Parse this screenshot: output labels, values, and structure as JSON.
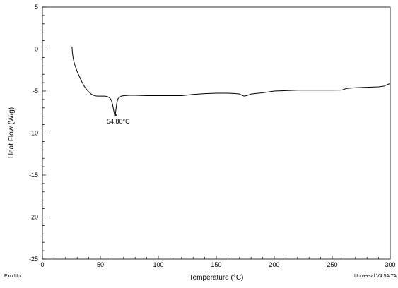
{
  "chart_data": {
    "type": "line",
    "title": "",
    "xlabel": "Temperature (°C)",
    "ylabel": "Heat Flow (W/g)",
    "xlim": [
      0,
      300
    ],
    "ylim": [
      -25,
      5
    ],
    "x_ticks": [
      0,
      50,
      100,
      150,
      200,
      250,
      300
    ],
    "y_ticks": [
      5,
      0,
      -5,
      -10,
      -15,
      -20,
      -25
    ],
    "grid": false,
    "line_color": "#000000",
    "series": [
      {
        "x": [
          25.5,
          25.8,
          26.3,
          27,
          28,
          29,
          30,
          32,
          34,
          36,
          38,
          40,
          42,
          44,
          46,
          48,
          50,
          52,
          54,
          56,
          58,
          59.5,
          60.5,
          61.5,
          62.3,
          63,
          63.5,
          64.3,
          65.2,
          66.5,
          68,
          70,
          75,
          80,
          90,
          100,
          110,
          120,
          130,
          140,
          150,
          160,
          165,
          170,
          172,
          174,
          176,
          178,
          180,
          190,
          200,
          210,
          220,
          230,
          240,
          250,
          258,
          260,
          262,
          265,
          270,
          280,
          290,
          295,
          298,
          300
        ],
        "y": [
          0.3,
          -0.3,
          -0.9,
          -1.4,
          -1.9,
          -2.3,
          -2.7,
          -3.3,
          -3.9,
          -4.4,
          -4.8,
          -5.1,
          -5.35,
          -5.5,
          -5.58,
          -5.6,
          -5.6,
          -5.6,
          -5.6,
          -5.65,
          -5.8,
          -6.1,
          -6.6,
          -7.3,
          -7.85,
          -7.65,
          -7.1,
          -6.3,
          -5.9,
          -5.75,
          -5.6,
          -5.55,
          -5.5,
          -5.5,
          -5.55,
          -5.55,
          -5.55,
          -5.55,
          -5.4,
          -5.3,
          -5.25,
          -5.25,
          -5.28,
          -5.35,
          -5.5,
          -5.6,
          -5.55,
          -5.45,
          -5.35,
          -5.2,
          -5.0,
          -4.95,
          -4.9,
          -4.9,
          -4.9,
          -4.9,
          -4.88,
          -4.8,
          -4.7,
          -4.65,
          -4.6,
          -4.55,
          -4.5,
          -4.4,
          -4.2,
          -4.1
        ]
      }
    ],
    "annotations": [
      {
        "text": "54.80°C",
        "x": 63,
        "y": -7.85
      }
    ],
    "footer_left": "Exo Up",
    "footer_right": "Universal V4.5A TA"
  }
}
